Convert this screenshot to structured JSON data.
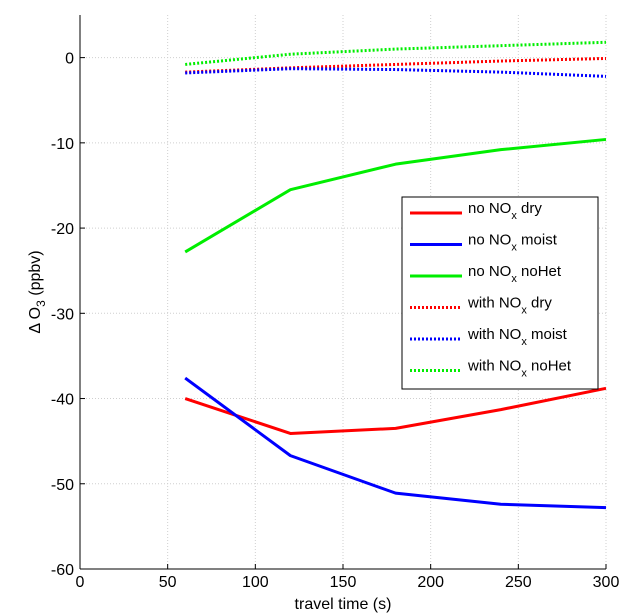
{
  "chart_data": {
    "type": "line",
    "title": "",
    "xlabel": "travel time (s)",
    "ylabel": {
      "prefix": "Δ O",
      "sub": "3",
      "suffix": " (ppbv)"
    },
    "xlim": [
      0,
      300
    ],
    "ylim": [
      -60,
      5
    ],
    "xticks": [
      0,
      50,
      100,
      150,
      200,
      250,
      300
    ],
    "yticks": [
      0,
      -10,
      -20,
      -30,
      -40,
      -50,
      -60
    ],
    "grid": true,
    "legend_position": "right",
    "x": [
      60,
      120,
      180,
      240,
      300
    ],
    "series": [
      {
        "name": "no NOx dry",
        "label_parts": [
          "no NO",
          "x",
          " dry"
        ],
        "color": "#ff0000",
        "style": "solid",
        "values": [
          -40,
          -44.1,
          -43.5,
          -41.3,
          -38.8
        ]
      },
      {
        "name": "no NOx moist",
        "label_parts": [
          "no NO",
          "x",
          " moist"
        ],
        "color": "#0000ff",
        "style": "solid",
        "values": [
          -37.6,
          -46.7,
          -51.1,
          -52.4,
          -52.8
        ]
      },
      {
        "name": "no NOx noHet",
        "label_parts": [
          "no NO",
          "x",
          " noHet"
        ],
        "color": "#00ee00",
        "style": "solid",
        "values": [
          -22.8,
          -15.5,
          -12.5,
          -10.8,
          -9.6
        ]
      },
      {
        "name": "with NOx dry",
        "label_parts": [
          "with NO",
          "x",
          " dry"
        ],
        "color": "#ff0000",
        "style": "dotted",
        "values": [
          -1.7,
          -1.2,
          -0.8,
          -0.4,
          -0.1
        ]
      },
      {
        "name": "with NOx moist",
        "label_parts": [
          "with NO",
          "x",
          " moist"
        ],
        "color": "#0000ff",
        "style": "dotted",
        "values": [
          -1.8,
          -1.3,
          -1.4,
          -1.7,
          -2.2
        ]
      },
      {
        "name": "with NOx noHet",
        "label_parts": [
          "with NO",
          "x",
          " noHet"
        ],
        "color": "#00ee00",
        "style": "dotted",
        "values": [
          -0.8,
          0.4,
          1.0,
          1.4,
          1.8
        ]
      }
    ]
  }
}
